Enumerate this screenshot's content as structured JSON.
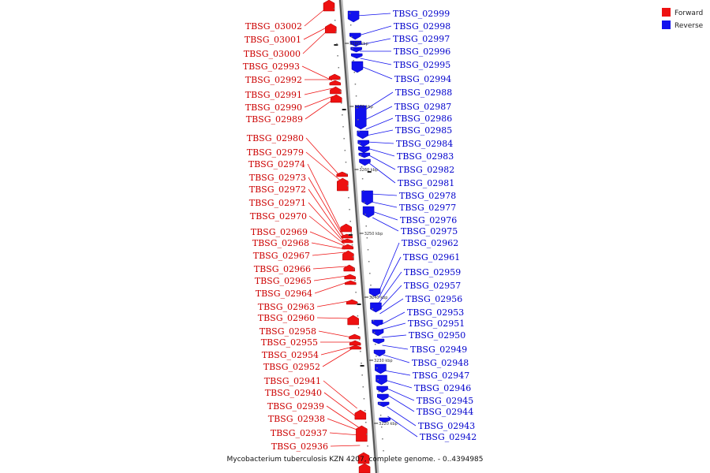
{
  "legend": [
    {
      "label": "Forward",
      "color": "#ee1111"
    },
    {
      "label": "Reverse",
      "color": "#1111ee"
    }
  ],
  "caption": "Mycobacterium tuberculosis KZN 4207, complete genome. - 0..4394985",
  "ticks": [
    "3280 kbp",
    "3270 kbp",
    "3260 kbp",
    "3250 kbp",
    "3240 kbp",
    "3230 kbp",
    "3220 kbp"
  ],
  "forward_genes": [
    "TBSG_03002",
    "TBSG_03001",
    "TBSG_03000",
    "TBSG_02993",
    "TBSG_02992",
    "TBSG_02991",
    "TBSG_02990",
    "TBSG_02989",
    "TBSG_02980",
    "TBSG_02979",
    "TBSG_02974",
    "TBSG_02973",
    "TBSG_02972",
    "TBSG_02971",
    "TBSG_02970",
    "TBSG_02969",
    "TBSG_02968",
    "TBSG_02967",
    "TBSG_02966",
    "TBSG_02965",
    "TBSG_02964",
    "TBSG_02963",
    "TBSG_02960",
    "TBSG_02958",
    "TBSG_02955",
    "TBSG_02954",
    "TBSG_02952",
    "TBSG_02941",
    "TBSG_02940",
    "TBSG_02939",
    "TBSG_02938",
    "TBSG_02937",
    "TBSG_02936"
  ],
  "reverse_genes": [
    "TBSG_02999",
    "TBSG_02998",
    "TBSG_02997",
    "TBSG_02996",
    "TBSG_02995",
    "TBSG_02994",
    "TBSG_02988",
    "TBSG_02987",
    "TBSG_02986",
    "TBSG_02985",
    "TBSG_02984",
    "TBSG_02983",
    "TBSG_02982",
    "TBSG_02981",
    "TBSG_02978",
    "TBSG_02977",
    "TBSG_02976",
    "TBSG_02975",
    "TBSG_02962",
    "TBSG_02961",
    "TBSG_02959",
    "TBSG_02957",
    "TBSG_02956",
    "TBSG_02953",
    "TBSG_02951",
    "TBSG_02950",
    "TBSG_02949",
    "TBSG_02948",
    "TBSG_02947",
    "TBSG_02946",
    "TBSG_02945",
    "TBSG_02944",
    "TBSG_02943",
    "TBSG_02942"
  ]
}
